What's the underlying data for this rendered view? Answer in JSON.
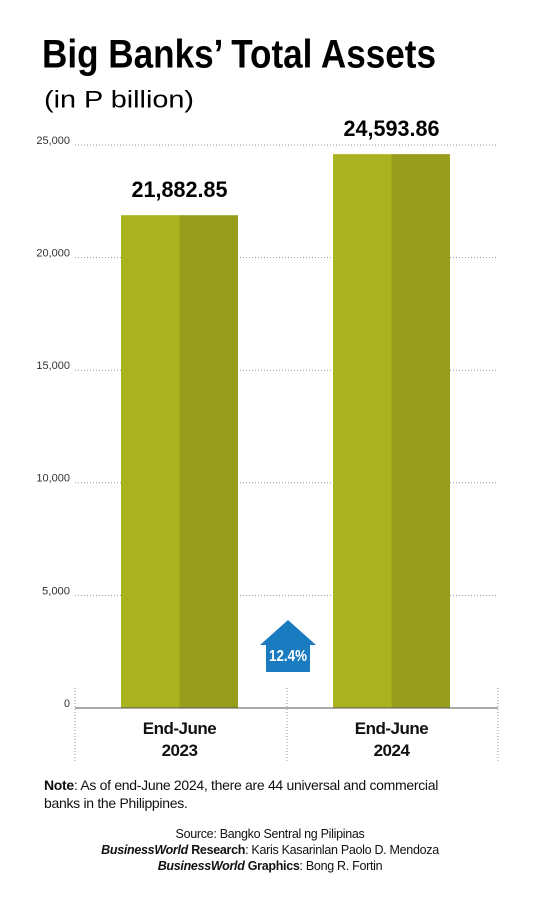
{
  "chart_data": {
    "type": "bar",
    "title": "Big Banks’ Total Assets",
    "subtitle": "(in P billion)",
    "categories": [
      "End-June\n2023",
      "End-June\n2024"
    ],
    "values": [
      21882.85,
      24593.86
    ],
    "value_labels": [
      "21,882.85",
      "24,593.86"
    ],
    "color": "#a9b31f",
    "shade_color": "#979e1c",
    "ylim": [
      0,
      25000
    ],
    "yticks": [
      0,
      {
        "value": 5000,
        "label": "5,000"
      },
      {
        "value": 10000,
        "label": "10,000"
      },
      {
        "value": 15000,
        "label": "15,000"
      },
      {
        "value": 20000,
        "label": "20,000"
      },
      {
        "value": 25000,
        "label": "25,000"
      }
    ],
    "grid": true,
    "annotation": {
      "text": "12.4%",
      "color": "#1b7bc1"
    }
  },
  "note": {
    "label": "Note",
    "text": ": As of end-June 2024, there are 44 universal and commercial banks in the Philippines."
  },
  "credits": [
    {
      "role": "Source",
      "name": ": Bangko Sentral ng Pilipinas"
    },
    {
      "role": "BusinessWorld",
      "role_rest": " Research",
      "name": ": Karis Kasarinlan Paolo D. Mendoza"
    },
    {
      "role": "BusinessWorld",
      "role_rest": " Graphics",
      "name": ": Bong R. Fortin"
    }
  ]
}
